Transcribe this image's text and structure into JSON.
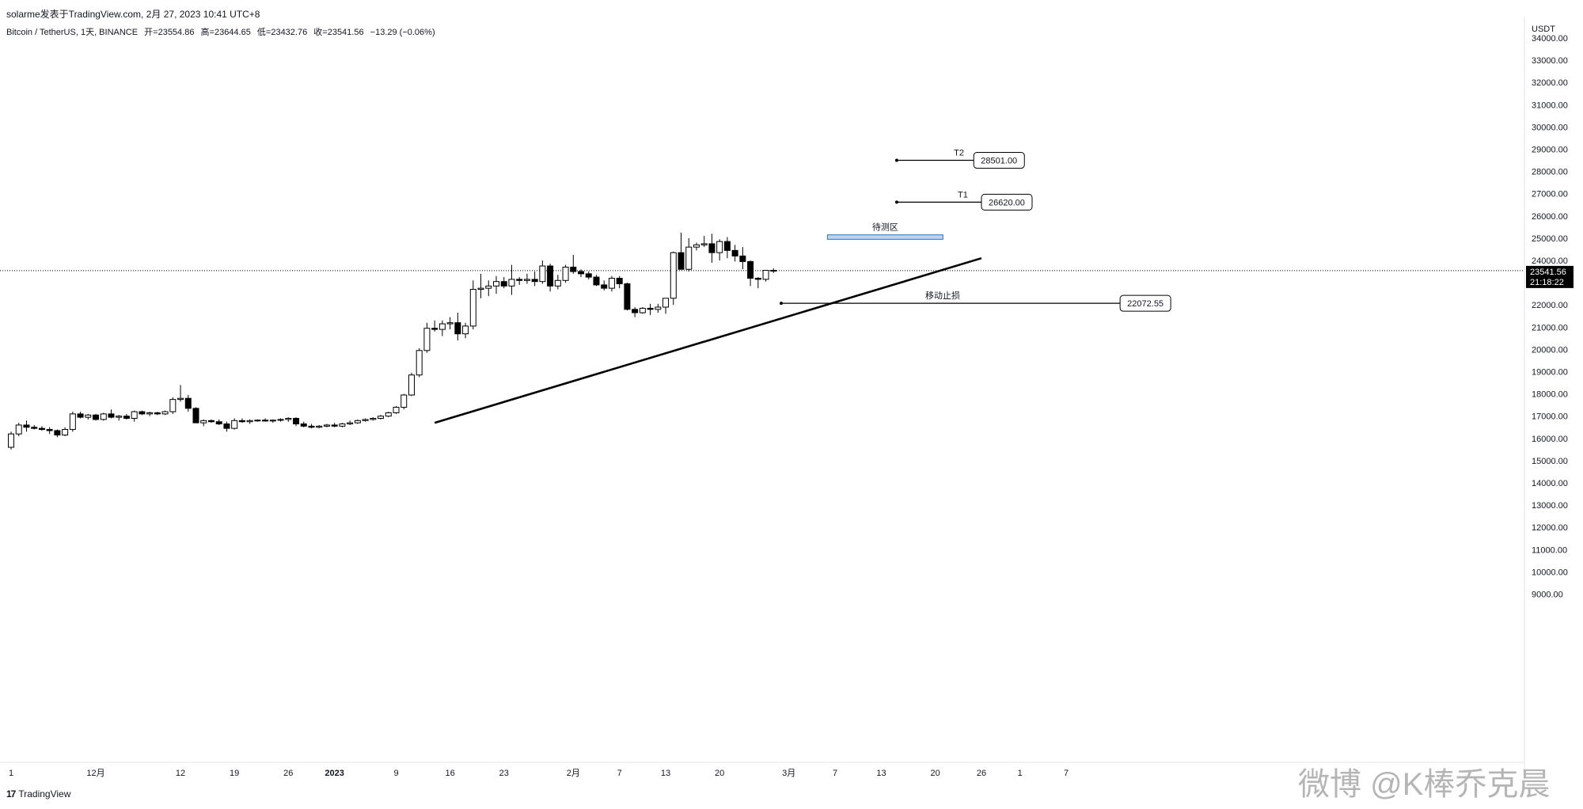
{
  "header": {
    "publisher": "solarme发表于TradingView.com,   2月 27, 2023 10:41 UTC+8",
    "symbol": "Bitcoin / TetherUS, 1天, BINANCE",
    "ohlc": {
      "open": "开=23554.86",
      "high": "高=23644.65",
      "low": "低=23432.76",
      "close": "收=23541.56",
      "change": "−13.29 (−0.06%)"
    }
  },
  "footer": {
    "logo": "17",
    "brand": "TradingView"
  },
  "watermark": "微博 @K棒乔克晨",
  "colors": {
    "up_fill": "#ffffff",
    "down_fill": "#000000",
    "stroke": "#000000",
    "zone": "#bcd4ef",
    "zone_border": "#3a6bb3"
  },
  "chart_data": {
    "type": "candlestick",
    "currency": "USDT",
    "ylim": [
      9000,
      34500
    ],
    "y_ticks": [
      "34000.00",
      "33000.00",
      "32000.00",
      "31000.00",
      "30000.00",
      "29000.00",
      "28000.00",
      "27000.00",
      "26000.00",
      "25000.00",
      "24000.00",
      "23000.00",
      "22000.00",
      "21000.00",
      "20000.00",
      "19000.00",
      "18000.00",
      "17000.00",
      "16000.00",
      "15000.00",
      "14000.00",
      "13000.00",
      "12000.00",
      "11000.00",
      "10000.00",
      "9000.00"
    ],
    "x_ticks": [
      {
        "label": "1",
        "day": 0
      },
      {
        "label": "12月",
        "day": 11
      },
      {
        "label": "12",
        "day": 22
      },
      {
        "label": "19",
        "day": 29
      },
      {
        "label": "26",
        "day": 36
      },
      {
        "label": "2023",
        "day": 42
      },
      {
        "label": "9",
        "day": 50
      },
      {
        "label": "16",
        "day": 57
      },
      {
        "label": "23",
        "day": 64
      },
      {
        "label": "2月",
        "day": 73
      },
      {
        "label": "7",
        "day": 79
      },
      {
        "label": "13",
        "day": 85
      },
      {
        "label": "20",
        "day": 92
      },
      {
        "label": "3月",
        "day": 101
      },
      {
        "label": "7",
        "day": 107
      },
      {
        "label": "13",
        "day": 113
      },
      {
        "label": "20",
        "day": 120
      },
      {
        "label": "26",
        "day": 126
      },
      {
        "label": "1",
        "day": 131
      },
      {
        "label": "7",
        "day": 137
      }
    ],
    "candles": [
      {
        "o": 15600,
        "h": 16300,
        "l": 15500,
        "c": 16200
      },
      {
        "o": 16200,
        "h": 16700,
        "l": 16100,
        "c": 16600
      },
      {
        "o": 16600,
        "h": 16800,
        "l": 16300,
        "c": 16500
      },
      {
        "o": 16500,
        "h": 16600,
        "l": 16400,
        "c": 16450
      },
      {
        "o": 16450,
        "h": 16550,
        "l": 16350,
        "c": 16400
      },
      {
        "o": 16400,
        "h": 16500,
        "l": 16200,
        "c": 16350
      },
      {
        "o": 16350,
        "h": 16400,
        "l": 16050,
        "c": 16150
      },
      {
        "o": 16150,
        "h": 16500,
        "l": 16100,
        "c": 16400
      },
      {
        "o": 16400,
        "h": 17200,
        "l": 16300,
        "c": 17100
      },
      {
        "o": 17100,
        "h": 17200,
        "l": 16900,
        "c": 16950
      },
      {
        "o": 16950,
        "h": 17100,
        "l": 16850,
        "c": 17050
      },
      {
        "o": 17050,
        "h": 17100,
        "l": 16800,
        "c": 16850
      },
      {
        "o": 16850,
        "h": 17150,
        "l": 16800,
        "c": 17100
      },
      {
        "o": 17100,
        "h": 17300,
        "l": 16900,
        "c": 16950
      },
      {
        "o": 16950,
        "h": 17050,
        "l": 16800,
        "c": 17000
      },
      {
        "o": 17000,
        "h": 17100,
        "l": 16850,
        "c": 16900
      },
      {
        "o": 16900,
        "h": 17250,
        "l": 16750,
        "c": 17200
      },
      {
        "o": 17200,
        "h": 17250,
        "l": 17050,
        "c": 17100
      },
      {
        "o": 17100,
        "h": 17200,
        "l": 17000,
        "c": 17150
      },
      {
        "o": 17150,
        "h": 17200,
        "l": 17050,
        "c": 17100
      },
      {
        "o": 17100,
        "h": 17250,
        "l": 17050,
        "c": 17200
      },
      {
        "o": 17200,
        "h": 17850,
        "l": 17100,
        "c": 17750
      },
      {
        "o": 17750,
        "h": 18400,
        "l": 17650,
        "c": 17800
      },
      {
        "o": 17800,
        "h": 17950,
        "l": 17200,
        "c": 17350
      },
      {
        "o": 17350,
        "h": 17400,
        "l": 16700,
        "c": 16700
      },
      {
        "o": 16700,
        "h": 16850,
        "l": 16550,
        "c": 16800
      },
      {
        "o": 16800,
        "h": 16850,
        "l": 16700,
        "c": 16750
      },
      {
        "o": 16750,
        "h": 16850,
        "l": 16600,
        "c": 16650
      },
      {
        "o": 16650,
        "h": 16750,
        "l": 16300,
        "c": 16450
      },
      {
        "o": 16450,
        "h": 16900,
        "l": 16400,
        "c": 16800
      },
      {
        "o": 16800,
        "h": 16900,
        "l": 16700,
        "c": 16750
      },
      {
        "o": 16750,
        "h": 16850,
        "l": 16650,
        "c": 16800
      },
      {
        "o": 16800,
        "h": 16850,
        "l": 16750,
        "c": 16820
      },
      {
        "o": 16820,
        "h": 16900,
        "l": 16750,
        "c": 16780
      },
      {
        "o": 16780,
        "h": 16850,
        "l": 16700,
        "c": 16820
      },
      {
        "o": 16820,
        "h": 16900,
        "l": 16750,
        "c": 16850
      },
      {
        "o": 16850,
        "h": 16950,
        "l": 16750,
        "c": 16900
      },
      {
        "o": 16900,
        "h": 16950,
        "l": 16550,
        "c": 16650
      },
      {
        "o": 16650,
        "h": 16750,
        "l": 16500,
        "c": 16550
      },
      {
        "o": 16550,
        "h": 16650,
        "l": 16450,
        "c": 16500
      },
      {
        "o": 16500,
        "h": 16600,
        "l": 16450,
        "c": 16550
      },
      {
        "o": 16550,
        "h": 16650,
        "l": 16500,
        "c": 16600
      },
      {
        "o": 16600,
        "h": 16700,
        "l": 16500,
        "c": 16550
      },
      {
        "o": 16550,
        "h": 16700,
        "l": 16500,
        "c": 16650
      },
      {
        "o": 16650,
        "h": 16800,
        "l": 16600,
        "c": 16700
      },
      {
        "o": 16700,
        "h": 16850,
        "l": 16650,
        "c": 16800
      },
      {
        "o": 16800,
        "h": 16900,
        "l": 16750,
        "c": 16850
      },
      {
        "o": 16850,
        "h": 16950,
        "l": 16800,
        "c": 16900
      },
      {
        "o": 16900,
        "h": 17050,
        "l": 16850,
        "c": 17000
      },
      {
        "o": 17000,
        "h": 17200,
        "l": 16950,
        "c": 17150
      },
      {
        "o": 17150,
        "h": 17450,
        "l": 17100,
        "c": 17400
      },
      {
        "o": 17400,
        "h": 18000,
        "l": 17300,
        "c": 17950
      },
      {
        "o": 17950,
        "h": 18950,
        "l": 17900,
        "c": 18850
      },
      {
        "o": 18850,
        "h": 20050,
        "l": 18750,
        "c": 19950
      },
      {
        "o": 19950,
        "h": 21200,
        "l": 19850,
        "c": 20950
      },
      {
        "o": 20950,
        "h": 21300,
        "l": 20800,
        "c": 20900
      },
      {
        "o": 20900,
        "h": 21300,
        "l": 20600,
        "c": 21150
      },
      {
        "o": 21150,
        "h": 21450,
        "l": 20900,
        "c": 21200
      },
      {
        "o": 21200,
        "h": 21650,
        "l": 20400,
        "c": 20700
      },
      {
        "o": 20700,
        "h": 21200,
        "l": 20500,
        "c": 21050
      },
      {
        "o": 21050,
        "h": 23100,
        "l": 20900,
        "c": 22700
      },
      {
        "o": 22700,
        "h": 23400,
        "l": 22300,
        "c": 22750
      },
      {
        "o": 22750,
        "h": 23100,
        "l": 22400,
        "c": 22850
      },
      {
        "o": 22850,
        "h": 23300,
        "l": 22500,
        "c": 23050
      },
      {
        "o": 23050,
        "h": 23250,
        "l": 22750,
        "c": 22850
      },
      {
        "o": 22850,
        "h": 23800,
        "l": 22450,
        "c": 23150
      },
      {
        "o": 23150,
        "h": 23250,
        "l": 22900,
        "c": 23100
      },
      {
        "o": 23100,
        "h": 23400,
        "l": 22950,
        "c": 23150
      },
      {
        "o": 23150,
        "h": 23500,
        "l": 22850,
        "c": 23050
      },
      {
        "o": 23050,
        "h": 24000,
        "l": 22950,
        "c": 23750
      },
      {
        "o": 23750,
        "h": 23850,
        "l": 22600,
        "c": 22850
      },
      {
        "o": 22850,
        "h": 23350,
        "l": 22700,
        "c": 23100
      },
      {
        "o": 23100,
        "h": 23800,
        "l": 23000,
        "c": 23700
      },
      {
        "o": 23700,
        "h": 24250,
        "l": 23400,
        "c": 23500
      },
      {
        "o": 23500,
        "h": 23600,
        "l": 23250,
        "c": 23400
      },
      {
        "o": 23400,
        "h": 23500,
        "l": 23150,
        "c": 23250
      },
      {
        "o": 23250,
        "h": 23350,
        "l": 22850,
        "c": 22900
      },
      {
        "o": 22900,
        "h": 23100,
        "l": 22650,
        "c": 22750
      },
      {
        "o": 22750,
        "h": 23300,
        "l": 22600,
        "c": 23200
      },
      {
        "o": 23200,
        "h": 23300,
        "l": 22750,
        "c": 22950
      },
      {
        "o": 22950,
        "h": 23000,
        "l": 21750,
        "c": 21800
      },
      {
        "o": 21800,
        "h": 21900,
        "l": 21450,
        "c": 21650
      },
      {
        "o": 21650,
        "h": 21900,
        "l": 21600,
        "c": 21850
      },
      {
        "o": 21850,
        "h": 22050,
        "l": 21550,
        "c": 21800
      },
      {
        "o": 21800,
        "h": 22050,
        "l": 21650,
        "c": 21900
      },
      {
        "o": 21900,
        "h": 22300,
        "l": 21600,
        "c": 22300
      },
      {
        "o": 22300,
        "h": 24400,
        "l": 22000,
        "c": 24350
      },
      {
        "o": 24350,
        "h": 25250,
        "l": 23600,
        "c": 23600
      },
      {
        "o": 23600,
        "h": 25000,
        "l": 23500,
        "c": 24600
      },
      {
        "o": 24600,
        "h": 24800,
        "l": 24450,
        "c": 24700
      },
      {
        "o": 24700,
        "h": 25100,
        "l": 24600,
        "c": 24750
      },
      {
        "o": 24750,
        "h": 25200,
        "l": 23900,
        "c": 24350
      },
      {
        "o": 24350,
        "h": 24950,
        "l": 24000,
        "c": 24850
      },
      {
        "o": 24850,
        "h": 25050,
        "l": 24100,
        "c": 24450
      },
      {
        "o": 24450,
        "h": 24700,
        "l": 23950,
        "c": 24200
      },
      {
        "o": 24200,
        "h": 24600,
        "l": 23600,
        "c": 23950
      },
      {
        "o": 23950,
        "h": 24000,
        "l": 22850,
        "c": 23200
      },
      {
        "o": 23200,
        "h": 23250,
        "l": 22750,
        "c": 23150
      },
      {
        "o": 23150,
        "h": 23550,
        "l": 23050,
        "c": 23555
      },
      {
        "o": 23555,
        "h": 23645,
        "l": 23433,
        "c": 23542
      }
    ],
    "current_price": "23541.56",
    "countdown": "21:18:22",
    "trendline": {
      "from": {
        "day": 55,
        "price": 16700
      },
      "to": {
        "day": 126,
        "price": 24100
      }
    },
    "annotations": {
      "t2": {
        "text": "T2",
        "price": 28501.0,
        "price_label": "28501.00",
        "start_day": 115,
        "end_day": 125
      },
      "t1": {
        "text": "T1",
        "price": 26620.0,
        "price_label": "26620.00",
        "start_day": 115,
        "end_day": 126
      },
      "zone": {
        "text": "待测区",
        "top": 25150,
        "bottom": 24950,
        "start_day": 106,
        "end_day": 121
      },
      "stop": {
        "text": "移动止损",
        "price": 22072.55,
        "price_label": "22072.55",
        "start_day": 100,
        "end_day": 144
      }
    }
  }
}
